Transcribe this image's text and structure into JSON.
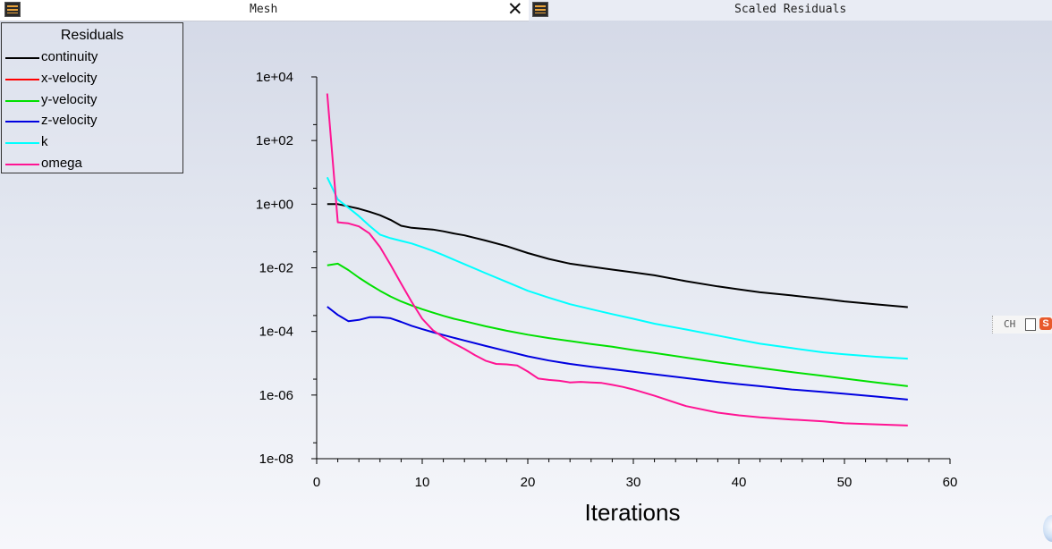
{
  "tabs": [
    {
      "title": "Mesh",
      "icon": "fluent-window-icon",
      "close": "✕"
    },
    {
      "title": "Scaled Residuals",
      "icon": "fluent-window-icon"
    }
  ],
  "ime": {
    "text": "CH"
  },
  "chart_data": {
    "type": "line",
    "title": "",
    "xlabel": "Iterations",
    "ylabel": "",
    "xlim": [
      0,
      60
    ],
    "ylim": [
      1e-08,
      10000
    ],
    "yscale": "log",
    "xticks": [
      0,
      10,
      20,
      30,
      40,
      50,
      60
    ],
    "yticks": [
      1e-08,
      1e-06,
      0.0001,
      0.01,
      1,
      100,
      10000
    ],
    "xtick_labels": [
      "0",
      "10",
      "20",
      "30",
      "40",
      "50",
      "60"
    ],
    "ytick_labels": [
      "1e-08",
      "1e-06",
      "1e-04",
      "1e-02",
      "1e+00",
      "1e+02",
      "1e+04"
    ],
    "grid": false,
    "legend": {
      "title": "Residuals",
      "position": "top-left"
    },
    "series": [
      {
        "name": "continuity",
        "color": "#000000",
        "x": [
          1,
          2,
          3,
          4,
          5,
          6,
          7,
          8,
          9,
          10,
          11,
          12,
          13,
          14,
          16,
          18,
          20,
          22,
          24,
          26,
          28,
          30,
          32,
          35,
          38,
          40,
          42,
          45,
          48,
          50,
          53,
          56
        ],
        "y": [
          1,
          1,
          0.85,
          0.72,
          0.58,
          0.45,
          0.32,
          0.21,
          0.18,
          0.17,
          0.16,
          0.14,
          0.12,
          0.105,
          0.072,
          0.048,
          0.029,
          0.019,
          0.0135,
          0.0108,
          0.0088,
          0.0072,
          0.0058,
          0.0038,
          0.0026,
          0.0021,
          0.0017,
          0.00135,
          0.00105,
          0.00088,
          0.00071,
          0.00058
        ]
      },
      {
        "name": "x-velocity",
        "color": "#ff0000",
        "x": [],
        "y": []
      },
      {
        "name": "y-velocity",
        "color": "#00e000",
        "x": [
          1,
          2,
          3,
          4,
          5,
          6,
          7,
          8,
          9,
          10,
          11,
          12,
          13,
          14,
          16,
          18,
          20,
          22,
          24,
          26,
          28,
          30,
          32,
          35,
          38,
          40,
          42,
          45,
          48,
          50,
          53,
          56
        ],
        "y": [
          0.012,
          0.0135,
          0.0085,
          0.0049,
          0.003,
          0.0019,
          0.00125,
          0.00088,
          0.00065,
          0.0005,
          0.00039,
          0.00031,
          0.00025,
          0.00021,
          0.000145,
          0.000105,
          7.9e-05,
          6.2e-05,
          5e-05,
          4e-05,
          3.3e-05,
          2.6e-05,
          2.1e-05,
          1.5e-05,
          1.07e-05,
          8.7e-06,
          7.1e-06,
          5.3e-06,
          4e-06,
          3.3e-06,
          2.5e-06,
          1.9e-06
        ]
      },
      {
        "name": "z-velocity",
        "color": "#0000e0",
        "x": [
          1,
          2,
          3,
          4,
          5,
          6,
          7,
          8,
          9,
          10,
          11,
          12,
          13,
          14,
          16,
          18,
          20,
          22,
          24,
          26,
          28,
          30,
          32,
          35,
          38,
          40,
          42,
          45,
          48,
          50,
          53,
          56
        ],
        "y": [
          0.0006,
          0.00033,
          0.00021,
          0.00023,
          0.00028,
          0.00028,
          0.00026,
          0.0002,
          0.00015,
          0.000118,
          9.5e-05,
          7.7e-05,
          6.3e-05,
          5.2e-05,
          3.5e-05,
          2.4e-05,
          1.65e-05,
          1.22e-05,
          9.5e-06,
          7.8e-06,
          6.5e-06,
          5.4e-06,
          4.5e-06,
          3.4e-06,
          2.6e-06,
          2.2e-06,
          1.9e-06,
          1.5e-06,
          1.25e-06,
          1.1e-06,
          9e-07,
          7.2e-07
        ]
      },
      {
        "name": "k",
        "color": "#00ffff",
        "x": [
          1,
          2,
          3,
          4,
          5,
          6,
          7,
          8,
          9,
          10,
          11,
          12,
          13,
          14,
          16,
          18,
          20,
          22,
          24,
          26,
          28,
          30,
          32,
          35,
          38,
          40,
          42,
          45,
          48,
          50,
          53,
          56
        ],
        "y": [
          7,
          1.4,
          0.78,
          0.42,
          0.21,
          0.11,
          0.085,
          0.07,
          0.058,
          0.045,
          0.034,
          0.025,
          0.018,
          0.013,
          0.0068,
          0.0036,
          0.0019,
          0.00115,
          0.00072,
          0.0005,
          0.00035,
          0.00025,
          0.000175,
          0.000115,
          7.4e-05,
          5.5e-05,
          4.1e-05,
          3e-05,
          2.2e-05,
          1.9e-05,
          1.6e-05,
          1.4e-05
        ]
      },
      {
        "name": "omega",
        "color": "#ff1493",
        "x": [
          1,
          2,
          3,
          4,
          5,
          6,
          7,
          8,
          9,
          10,
          11,
          12,
          13,
          14,
          15,
          16,
          17,
          18,
          19,
          20,
          21,
          22,
          23,
          24,
          25,
          26,
          27,
          28,
          29,
          30,
          32,
          35,
          38,
          40,
          42,
          45,
          48,
          50,
          53,
          56
        ],
        "y": [
          3000,
          0.27,
          0.25,
          0.2,
          0.12,
          0.045,
          0.0125,
          0.0032,
          0.00085,
          0.00025,
          0.00011,
          6.5e-05,
          4.2e-05,
          2.8e-05,
          1.8e-05,
          1.2e-05,
          9.5e-06,
          9.2e-06,
          8.5e-06,
          5.5e-06,
          3.3e-06,
          3e-06,
          2.8e-06,
          2.5e-06,
          2.6e-06,
          2.5e-06,
          2.4e-06,
          2.1e-06,
          1.8e-06,
          1.5e-06,
          9.5e-07,
          4.5e-07,
          2.8e-07,
          2.3e-07,
          2e-07,
          1.7e-07,
          1.5e-07,
          1.3e-07,
          1.2e-07,
          1.1e-07
        ]
      }
    ]
  }
}
